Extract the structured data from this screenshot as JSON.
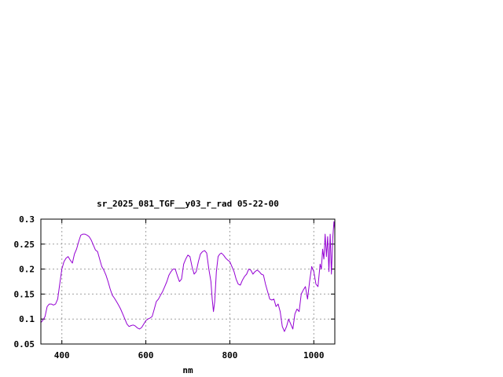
{
  "chart_data": {
    "type": "line",
    "title": "sr_2025_081_TGF__y03_r_rad 05-22-00",
    "xlabel": "nm",
    "ylabel": "",
    "xlim": [
      350,
      1050
    ],
    "ylim": [
      0.05,
      0.3
    ],
    "x_ticks": [
      400,
      600,
      800,
      1000
    ],
    "y_ticks": [
      0.05,
      0.1,
      0.15,
      0.2,
      0.25,
      0.3
    ],
    "x_tick_labels": [
      "400",
      "600",
      "800",
      "1000"
    ],
    "y_tick_labels": [
      "0.05",
      "0.1",
      "0.15",
      "0.2",
      "0.25",
      "0.3"
    ],
    "grid": true,
    "legend": "none",
    "series": [
      {
        "color": "#9400d3",
        "x": [
          350,
          355,
          360,
          365,
          370,
          375,
          380,
          385,
          390,
          395,
          400,
          405,
          410,
          415,
          420,
          425,
          430,
          435,
          440,
          445,
          450,
          455,
          460,
          465,
          470,
          475,
          480,
          485,
          490,
          495,
          500,
          505,
          510,
          515,
          520,
          525,
          530,
          535,
          540,
          545,
          550,
          555,
          560,
          565,
          570,
          575,
          580,
          585,
          590,
          595,
          600,
          605,
          610,
          615,
          620,
          625,
          630,
          635,
          640,
          645,
          650,
          655,
          660,
          665,
          670,
          675,
          680,
          685,
          690,
          695,
          700,
          705,
          710,
          715,
          720,
          725,
          730,
          735,
          740,
          745,
          750,
          755,
          758,
          761,
          764,
          768,
          772,
          776,
          780,
          785,
          790,
          795,
          800,
          805,
          810,
          815,
          820,
          825,
          830,
          835,
          840,
          845,
          850,
          855,
          860,
          865,
          870,
          875,
          880,
          885,
          890,
          895,
          900,
          905,
          910,
          915,
          920,
          925,
          930,
          935,
          940,
          945,
          950,
          955,
          960,
          965,
          970,
          975,
          980,
          985,
          990,
          995,
          1000,
          1005,
          1010,
          1015,
          1018,
          1021,
          1024,
          1027,
          1030,
          1033,
          1036,
          1039,
          1042,
          1045,
          1048,
          1050
        ],
        "y": [
          0.093,
          0.098,
          0.105,
          0.125,
          0.13,
          0.13,
          0.128,
          0.13,
          0.14,
          0.17,
          0.2,
          0.215,
          0.222,
          0.225,
          0.218,
          0.212,
          0.23,
          0.24,
          0.255,
          0.268,
          0.27,
          0.27,
          0.268,
          0.265,
          0.258,
          0.248,
          0.238,
          0.235,
          0.22,
          0.205,
          0.198,
          0.188,
          0.175,
          0.16,
          0.148,
          0.142,
          0.135,
          0.128,
          0.12,
          0.11,
          0.1,
          0.09,
          0.085,
          0.087,
          0.088,
          0.086,
          0.082,
          0.08,
          0.083,
          0.09,
          0.097,
          0.1,
          0.102,
          0.105,
          0.12,
          0.135,
          0.14,
          0.148,
          0.155,
          0.165,
          0.175,
          0.188,
          0.195,
          0.2,
          0.2,
          0.187,
          0.175,
          0.18,
          0.21,
          0.22,
          0.228,
          0.225,
          0.205,
          0.19,
          0.195,
          0.215,
          0.23,
          0.235,
          0.237,
          0.232,
          0.2,
          0.175,
          0.14,
          0.115,
          0.135,
          0.195,
          0.225,
          0.23,
          0.232,
          0.228,
          0.222,
          0.218,
          0.215,
          0.205,
          0.195,
          0.18,
          0.17,
          0.168,
          0.178,
          0.185,
          0.19,
          0.2,
          0.198,
          0.19,
          0.195,
          0.198,
          0.195,
          0.19,
          0.188,
          0.17,
          0.155,
          0.14,
          0.138,
          0.14,
          0.125,
          0.13,
          0.115,
          0.085,
          0.075,
          0.085,
          0.1,
          0.09,
          0.08,
          0.11,
          0.12,
          0.115,
          0.15,
          0.158,
          0.165,
          0.14,
          0.175,
          0.205,
          0.195,
          0.17,
          0.165,
          0.21,
          0.2,
          0.24,
          0.22,
          0.27,
          0.225,
          0.265,
          0.195,
          0.27,
          0.19,
          0.26,
          0.295,
          0.28
        ]
      }
    ]
  }
}
